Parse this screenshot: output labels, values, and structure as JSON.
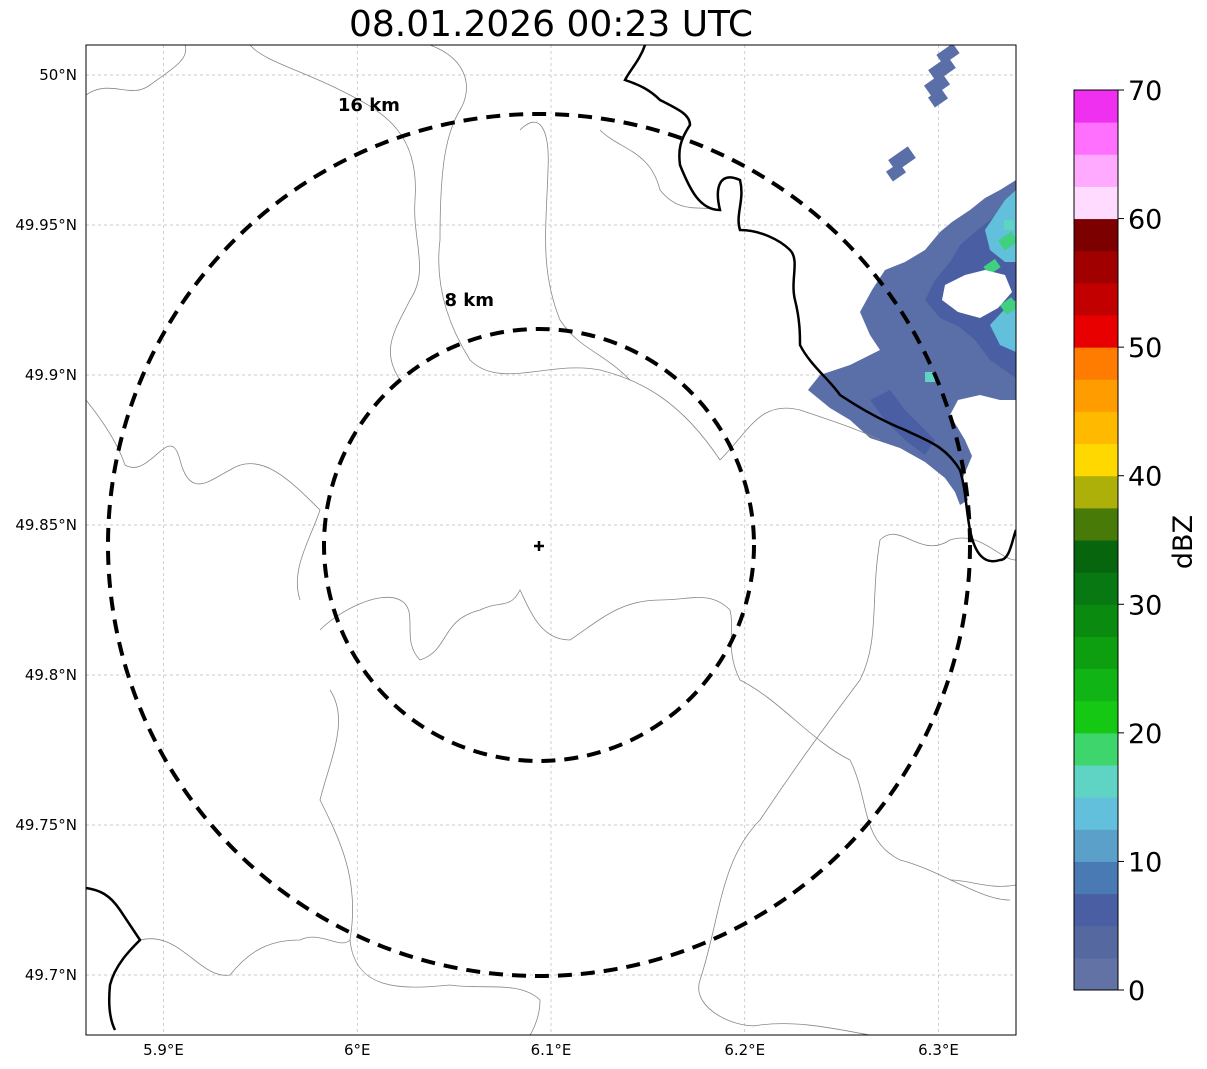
{
  "title": "08.01.2026 00:23 UTC",
  "map": {
    "lon_range": [
      5.86,
      6.34
    ],
    "lat_range": [
      49.68,
      50.01
    ],
    "lon_ticks": [
      {
        "value": 5.9,
        "label": "5.9°E"
      },
      {
        "value": 6.0,
        "label": "6°E"
      },
      {
        "value": 6.1,
        "label": "6.1°E"
      },
      {
        "value": 6.2,
        "label": "6.2°E"
      },
      {
        "value": 6.3,
        "label": "6.3°E"
      }
    ],
    "lat_ticks": [
      {
        "value": 49.7,
        "label": "49.7°N"
      },
      {
        "value": 49.75,
        "label": "49.75°N"
      },
      {
        "value": 49.8,
        "label": "49.8°N"
      },
      {
        "value": 49.85,
        "label": "49.85°N"
      },
      {
        "value": 49.9,
        "label": "49.9°N"
      },
      {
        "value": 49.95,
        "label": "49.95°N"
      },
      {
        "value": 50.0,
        "label": "50°N"
      }
    ],
    "gridlines": true,
    "radar_site": {
      "lon": 6.095,
      "lat": 49.843
    },
    "range_rings": [
      {
        "label": "8 km",
        "label_lon": 6.045,
        "label_lat": 49.923
      },
      {
        "label": "16 km",
        "label_lon": 5.99,
        "label_lat": 49.988
      }
    ],
    "echo_colors": {
      "weak": "#5a6ea8",
      "moderate": "#4a64a6",
      "strong": "#60c8c0",
      "intense": "#40d080"
    }
  },
  "colorbar": {
    "label": "dBZ",
    "vmin": 0,
    "vmax": 70,
    "ticks": [
      0,
      10,
      20,
      30,
      40,
      50,
      60,
      70
    ],
    "colors": [
      "#6272a4",
      "#5668a0",
      "#4a5fa3",
      "#4a7ab4",
      "#5aa0c8",
      "#62c0dc",
      "#5fd4c4",
      "#3ed66c",
      "#14c814",
      "#10b414",
      "#0e9f10",
      "#0a8a0e",
      "#087812",
      "#07650e",
      "#487a08",
      "#aeb00a",
      "#ffd800",
      "#ffba00",
      "#ff9c00",
      "#ff7c00",
      "#e80000",
      "#c20000",
      "#a00000",
      "#7c0000",
      "#ffdcff",
      "#ffaaff",
      "#ff70ff",
      "#f030f0"
    ]
  }
}
